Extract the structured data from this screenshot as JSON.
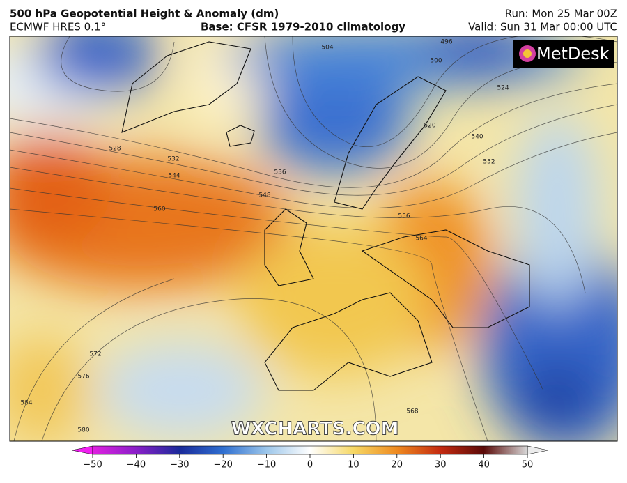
{
  "header": {
    "title": "500 hPa Geopotential Height & Anomaly (dm)",
    "model": "ECMWF HRES 0.1°",
    "base": "Base: CFSR 1979-2010 climatology",
    "run": "Run: Mon 25 Mar 00Z",
    "valid": "Valid: Sun 31 Mar 00:00 UTC"
  },
  "logo": "MetDesk",
  "watermark": "WXCHARTS.COM",
  "contour_labels": [
    496,
    500,
    504,
    520,
    524,
    528,
    532,
    536,
    540,
    544,
    548,
    552,
    556,
    560,
    564,
    568,
    572,
    576,
    580,
    584
  ],
  "colorbar": {
    "range": [
      -50,
      50
    ],
    "ticks": [
      {
        "value": -50,
        "label": "−50"
      },
      {
        "value": -40,
        "label": "−40"
      },
      {
        "value": -30,
        "label": "−30"
      },
      {
        "value": -20,
        "label": "−20"
      },
      {
        "value": -10,
        "label": "−10"
      },
      0,
      10,
      20,
      30,
      40,
      50
    ]
  }
}
